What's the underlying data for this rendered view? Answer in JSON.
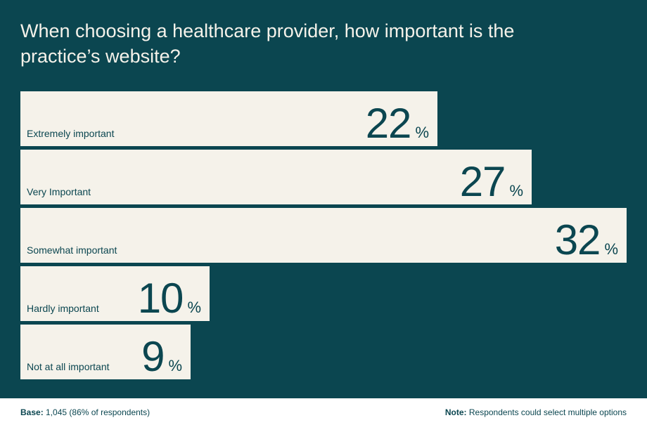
{
  "chart_data": {
    "type": "bar",
    "orientation": "horizontal",
    "title": "When choosing a healthcare provider, how important is the practice’s website?",
    "categories": [
      "Extremely important",
      "Very Important",
      "Somewhat important",
      "Hardly important",
      "Not at all important"
    ],
    "values": [
      22,
      27,
      32,
      10,
      9
    ],
    "value_suffix": "%",
    "xlim": [
      0,
      32
    ],
    "grid": false,
    "legend": "none"
  },
  "footer": {
    "base_label": "Base:",
    "base_text": "1,045 (86% of respondents)",
    "note_label": "Note:",
    "note_text": "Respondents could select multiple options"
  },
  "colors": {
    "background": "#0b4650",
    "bar": "#f5f2ea",
    "text_dark": "#0b4650",
    "text_light": "#f5f2ea"
  }
}
